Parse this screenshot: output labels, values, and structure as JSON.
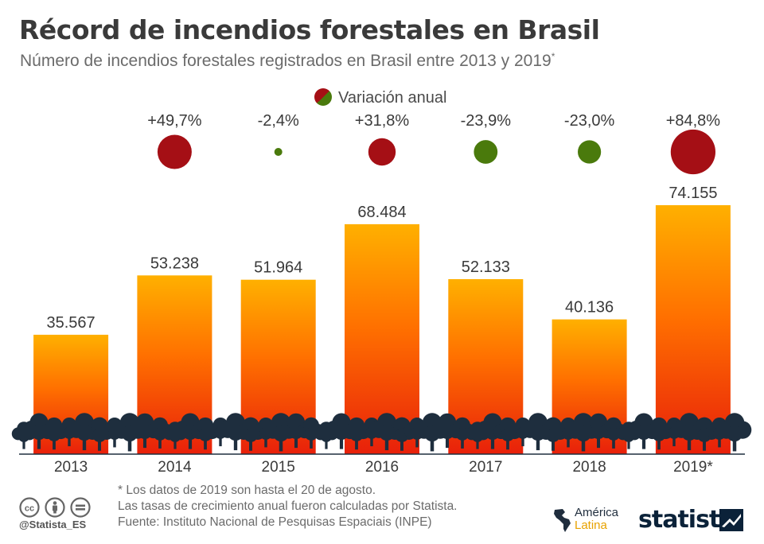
{
  "title": "Récord de incendios forestales en Brasil",
  "subtitle": "Número de incendios forestales registrados en Brasil entre 2013 y 2019",
  "subtitle_mark": "*",
  "legend": {
    "label": "Variación anual",
    "up_color": "#a50f15",
    "down_color": "#4a7a0c"
  },
  "chart_data": {
    "type": "bar",
    "categories": [
      "2013",
      "2014",
      "2015",
      "2016",
      "2017",
      "2018",
      "2019*"
    ],
    "values": [
      35567,
      53238,
      51964,
      68484,
      52133,
      40136,
      74155
    ],
    "value_labels": [
      "35.567",
      "53.238",
      "51.964",
      "68.484",
      "52.133",
      "40.136",
      "74.155"
    ],
    "annual_change": [
      null,
      49.7,
      -2.4,
      31.8,
      -23.9,
      -23.0,
      84.8
    ],
    "annual_change_labels": [
      "",
      "+49,7%",
      "-2,4%",
      "+31,8%",
      "-23,9%",
      "-23,0%",
      "+84,8%"
    ],
    "bar_gradient": [
      "#ffb000",
      "#ff6a00",
      "#e8200a"
    ],
    "ylim": [
      0,
      80000
    ],
    "grid": false,
    "legend_position": "top-center"
  },
  "footnotes": [
    "* Los datos de 2019 son hasta el 20 de agosto.",
    "Las tasas de crecimiento anual fueron calculadas por Statista.",
    "Fuente: Instituto Nacional de Pesquisas Espaciais (INPE)"
  ],
  "handle": "@Statista_ES",
  "partner_logo": {
    "line1": "América",
    "line2": "Latina"
  },
  "brand": "statista",
  "icons": [
    "cc-icon",
    "by-icon",
    "nd-icon",
    "americas-map-icon",
    "statista-mark-icon",
    "tree-silhouette-icon"
  ]
}
